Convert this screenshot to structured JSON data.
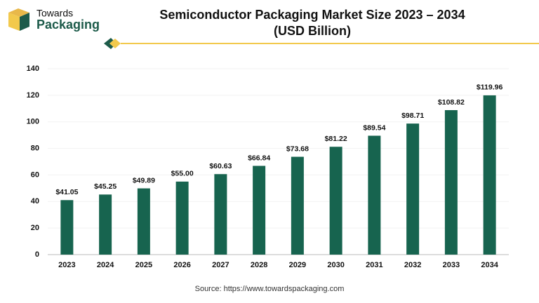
{
  "brand": {
    "line1": "Towards",
    "line2": "Packaging"
  },
  "chart_data": {
    "type": "bar",
    "title": "Semiconductor Packaging Market Size 2023 – 2034",
    "subtitle": "(USD Billion)",
    "categories": [
      "2023",
      "2024",
      "2025",
      "2026",
      "2027",
      "2028",
      "2029",
      "2030",
      "2031",
      "2032",
      "2033",
      "2034"
    ],
    "values": [
      41.05,
      45.25,
      49.89,
      55.0,
      60.63,
      66.84,
      73.68,
      81.22,
      89.54,
      98.71,
      108.82,
      119.96
    ],
    "value_labels": [
      "$41.05",
      "$45.25",
      "$49.89",
      "$55.00",
      "$60.63",
      "$66.84",
      "$73.68",
      "$81.22",
      "$89.54",
      "$98.71",
      "$108.82",
      "$119.96"
    ],
    "color": "#17644f",
    "ylim": [
      0,
      140
    ],
    "yticks": [
      0,
      20,
      40,
      60,
      80,
      100,
      120,
      140
    ],
    "grid": true,
    "source": "Source: https://www.towardspackaging.com"
  }
}
